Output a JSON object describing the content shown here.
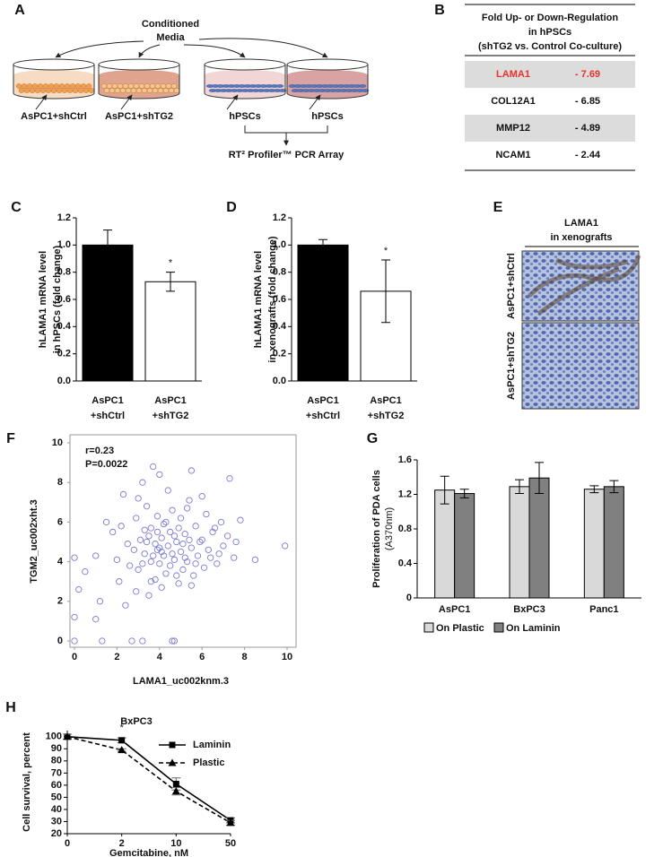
{
  "panel_labels": [
    "A",
    "B",
    "C",
    "D",
    "E",
    "F",
    "G",
    "H"
  ],
  "diagram": {
    "title": [
      "Conditioned",
      "Media"
    ],
    "dishes": [
      "AsPC1+shCtrl",
      "AsPC1+shTG2",
      "hPSCs",
      "hPSCs"
    ],
    "result": "RT² Profiler™ PCR Array"
  },
  "table": {
    "title": [
      "Fold Up- or Down-Regulation",
      "in hPSCs",
      "(shTG2 vs. Control Co-culture)"
    ],
    "rows": [
      [
        "LAMA1",
        "- 7.69"
      ],
      [
        "COL12A1",
        "- 6.85"
      ],
      [
        "MMP12",
        "- 4.89"
      ],
      [
        "NCAM1",
        "- 2.44"
      ]
    ]
  },
  "image_panel": {
    "title": [
      "LAMA1",
      "in xenografts"
    ],
    "rows": [
      "AsPC1+shCtrl",
      "AsPC1+shTG2"
    ]
  },
  "chart_data": [
    {
      "type": "bar",
      "ylabel": [
        "hLAMA1 mRNA level",
        "in hPSCs (fold change)"
      ],
      "categories": [
        [
          "AsPC1",
          "+shCtrl"
        ],
        [
          "AsPC1",
          "+shTG2"
        ]
      ],
      "values": [
        1,
        0.73
      ],
      "errors": [
        0.11,
        0.07
      ],
      "colors": [
        "#000000",
        "#ffffff"
      ],
      "ylim": [
        0,
        1.2
      ],
      "yticks": [
        {
          "value": 0,
          "label": "0.0"
        },
        0.2,
        0.4,
        0.6,
        0.8,
        {
          "value": 1,
          "label": "1.0"
        },
        1.2
      ],
      "annotation": "*"
    },
    {
      "type": "bar",
      "ylabel": [
        "hLAMA1 mRNA level",
        "in xenografts (fold change)"
      ],
      "categories": [
        [
          "AsPC1",
          "+shCtrl"
        ],
        [
          "AsPC1",
          "+shTG2"
        ]
      ],
      "values": [
        1,
        0.66
      ],
      "errors": [
        0.04,
        0.23
      ],
      "colors": [
        "#000000",
        "#ffffff"
      ],
      "ylim": [
        0,
        1.2
      ],
      "yticks": [
        {
          "value": 0,
          "label": "0.0"
        },
        0.2,
        0.4,
        0.6,
        0.8,
        {
          "value": 1,
          "label": "1.0"
        },
        1.2
      ],
      "annotation": "*"
    },
    {
      "type": "scatter",
      "xlabel": "LAMA1_uc002knm.3",
      "ylabel": "TGM2_uc002xht.3",
      "annotations": [
        "r=0.23",
        "P=0.0022"
      ],
      "color": "#7b7bd0",
      "xlim": [
        0,
        10
      ],
      "ylim": [
        0,
        10
      ],
      "xticks": [
        0,
        2,
        4,
        6,
        8,
        10
      ],
      "yticks": [
        0,
        2,
        4,
        6,
        8,
        10
      ],
      "x": [
        0,
        1.3,
        2.7,
        3.2,
        4.6,
        4.7,
        0,
        0.2,
        0,
        1,
        9.9,
        8.5,
        7.3,
        5.5,
        3.7,
        3.2,
        2.3,
        4.0,
        0.5,
        1.2,
        1.8,
        2.1,
        2.5,
        2.9,
        3.0,
        3.1,
        3.3,
        3.4,
        3.5,
        3.6,
        3.6,
        3.8,
        3.9,
        3.9,
        4.0,
        4.1,
        4.1,
        4.2,
        4.3,
        4.3,
        4.4,
        4.5,
        4.5,
        4.6,
        4.7,
        4.8,
        4.9,
        5.0,
        5.0,
        5.1,
        5.2,
        5.3,
        5.4,
        5.5,
        5.6,
        5.7,
        5.8,
        6.0,
        6.1,
        6.2,
        6.3,
        6.5,
        6.7,
        6.9,
        7.0,
        7.2,
        7.5,
        7.8,
        2.0,
        2.6,
        3.0,
        3.4,
        3.7,
        4.2,
        4.8,
        5.3,
        5.9,
        6.4,
        1.5,
        2.2,
        2.8,
        3.5,
        4.0,
        4.4,
        5.1,
        5.7,
        6.6,
        3.2,
        3.9,
        4.6,
        5.4,
        6.8,
        7.6,
        1.0,
        2.4,
        3.6,
        4.9,
        5.5,
        6.0,
        3.3,
        4.1,
        4.7,
        2.9,
        3.8,
        5.2
      ],
      "y": [
        0,
        0,
        0,
        0,
        0,
        0,
        1.2,
        2.6,
        4.2,
        1.1,
        4.8,
        4.1,
        8.2,
        8.6,
        8.8,
        8.0,
        7.4,
        8.4,
        3.5,
        2.0,
        5.5,
        3.0,
        4.9,
        6.2,
        3.6,
        5.1,
        4.4,
        6.8,
        2.3,
        4.0,
        5.7,
        3.1,
        4.6,
        6.3,
        3.9,
        5.2,
        2.7,
        4.3,
        6.0,
        3.4,
        4.8,
        5.5,
        3.8,
        6.6,
        4.1,
        5.0,
        2.9,
        4.5,
        6.2,
        3.6,
        5.4,
        4.0,
        7.1,
        4.7,
        3.3,
        5.8,
        4.3,
        5.1,
        3.7,
        6.4,
        4.6,
        5.5,
        3.9,
        6.0,
        4.8,
        5.3,
        4.2,
        6.1,
        4.1,
        3.8,
        7.2,
        5.0,
        4.3,
        5.9,
        3.3,
        6.7,
        5.0,
        4.2,
        6.0,
        5.8,
        4.6,
        5.3,
        4.7,
        7.6,
        4.9,
        3.9,
        5.7,
        3.9,
        5.5,
        4.4,
        5.1,
        4.4,
        5.0,
        4.3,
        1.8,
        3.0,
        5.7,
        2.8,
        7.3,
        5.6,
        4.5,
        5.3,
        2.5,
        4.9,
        4.2
      ]
    },
    {
      "type": "bar",
      "ylabel": [
        "Proliferation of PDA cells",
        "(A370nm)"
      ],
      "categories": [
        "AsPC1",
        "BxPC3",
        "Panc1"
      ],
      "series": [
        {
          "name": "On Plastic",
          "color": "#d9d9d9",
          "values": [
            1.25,
            1.29,
            1.26
          ],
          "errors": [
            0.16,
            0.08,
            0.04
          ]
        },
        {
          "name": "On Laminin",
          "color": "#808080",
          "values": [
            1.21,
            1.39,
            1.29
          ],
          "errors": [
            0.05,
            0.18,
            0.07
          ]
        }
      ],
      "ylim": [
        0,
        1.6
      ],
      "yticks": [
        0,
        0.4,
        0.8,
        1.2,
        1.6
      ],
      "legend": "bottom"
    },
    {
      "type": "line",
      "title": "BxPC3",
      "xlabel": "Gemcitabine, nM",
      "ylabel": "Cell survival, percent",
      "annotation": "*",
      "categories": [
        "0",
        "2",
        "10",
        "50"
      ],
      "series": [
        {
          "name": "Laminin",
          "color": "#000000",
          "marker": "square",
          "dashed": false,
          "values": [
            100,
            97,
            61,
            31
          ],
          "errors": [
            2,
            2,
            5,
            2
          ]
        },
        {
          "name": "Plastic",
          "color": "#000000",
          "marker": "triangle",
          "dashed": true,
          "values": [
            100,
            89,
            55,
            29
          ],
          "errors": [
            2,
            1,
            3,
            2
          ]
        }
      ],
      "ylim": [
        20,
        105
      ],
      "yticks": [
        20,
        30,
        40,
        50,
        60,
        70,
        80,
        90,
        100
      ],
      "legend": "right"
    }
  ]
}
